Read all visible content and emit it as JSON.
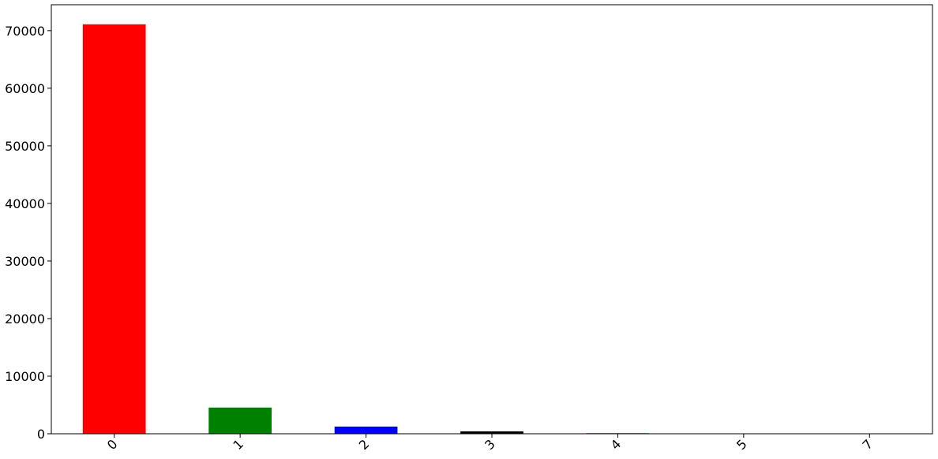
{
  "chart_data": {
    "type": "bar",
    "categories": [
      "0",
      "1",
      "2",
      "3",
      "4",
      "5",
      "7"
    ],
    "values": [
      71100,
      4550,
      1250,
      420,
      120,
      20,
      10
    ],
    "colors": [
      "#ff0000",
      "#008000",
      "#0000ff",
      "#000000",
      "#00bfbf",
      "#bf00bf",
      "#bfbf00"
    ],
    "ylim": [
      0,
      74500
    ],
    "yticks": [
      0,
      10000,
      20000,
      30000,
      40000,
      50000,
      60000,
      70000
    ],
    "ytick_labels": [
      "0",
      "10000",
      "20000",
      "30000",
      "40000",
      "50000",
      "60000",
      "70000"
    ],
    "xtick_rotation": 45,
    "grid": false,
    "title": "",
    "xlabel": "",
    "ylabel": ""
  }
}
